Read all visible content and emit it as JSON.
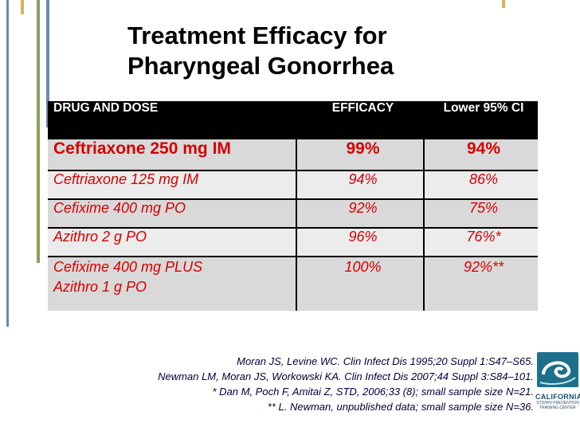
{
  "title": {
    "line1": "Treatment Efficacy for",
    "line2": "Pharyngeal Gonorrhea"
  },
  "table": {
    "headers": [
      "DRUG AND DOSE",
      "EFFICACY",
      "Lower 95% CI"
    ],
    "rows": [
      {
        "drug": "Ceftriaxone 250 mg IM",
        "efficacy": "99%",
        "ci": "94%"
      },
      {
        "drug": "Ceftriaxone 125 mg IM",
        "efficacy": "94%",
        "ci": "86%"
      },
      {
        "drug": "Cefixime 400 mg PO",
        "efficacy": "92%",
        "ci": "75%"
      },
      {
        "drug": "Azithro 2 g PO",
        "efficacy": "96%",
        "ci": "76%*"
      },
      {
        "drug_line1": "Cefixime 400 mg PLUS",
        "drug_line2": "Azithro 1 g PO",
        "efficacy": "100%",
        "ci": "92%**"
      }
    ]
  },
  "references": [
    "Moran JS, Levine WC. Clin Infect Dis 1995;20 Suppl 1:S47–S65.",
    "Newman LM, Moran JS, Workowski KA. Clin Infect Dis 2007;44 Suppl 3:S84–101.",
    "* Dan M, Poch F, Amitai Z, STD, 2006;33 (8); small sample size N=21.",
    "** L. Newman, unpublished data; small sample size N=36."
  ],
  "logo": {
    "line1": "CALIFORNIA",
    "line2": "STD/HIV PREVENTION",
    "line3": "TRAINING CENTER"
  },
  "colors": {
    "accent_red": "#d40000",
    "line_blue": "#6b87b8",
    "line_green": "#8aa05a",
    "line_gold": "#d7b25a"
  }
}
